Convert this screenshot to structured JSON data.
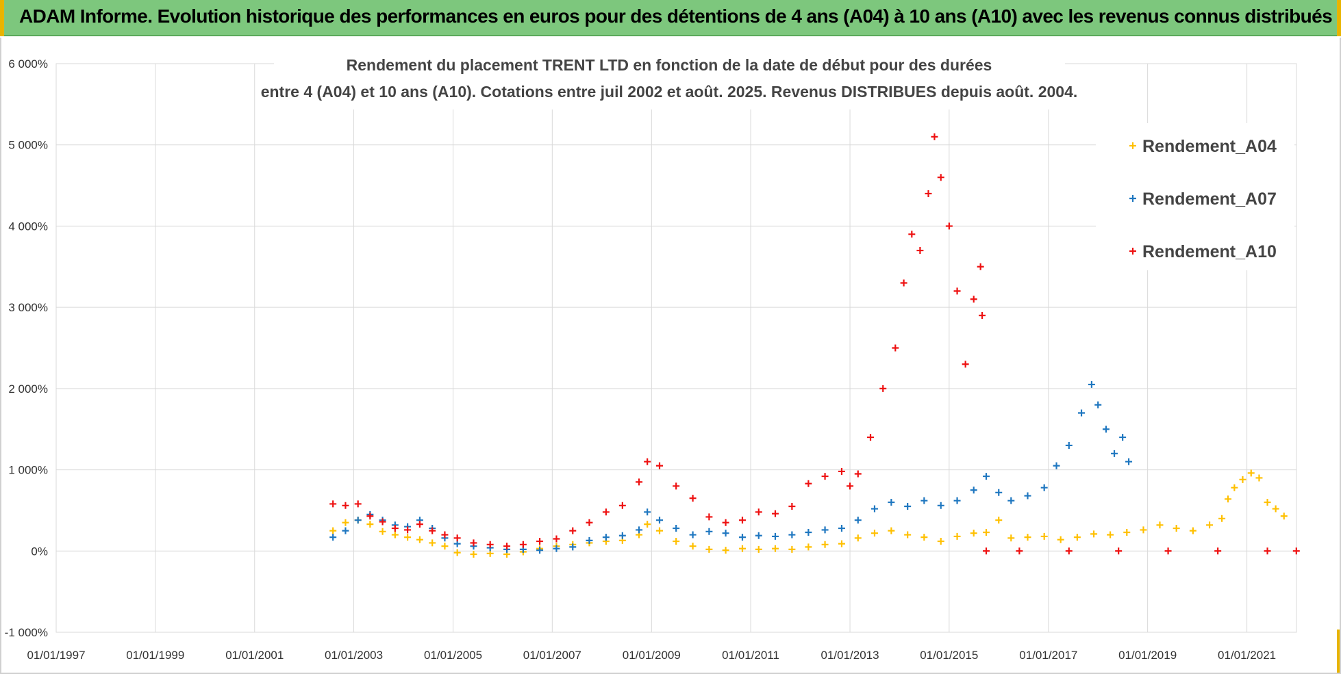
{
  "banner": {
    "text": "ADAM Informe. Evolution historique des performances en euros pour des détentions de 4 ans (A04) à 10 ans (A10) avec les revenus connus distribués"
  },
  "colors": {
    "banner_bg": "#7dc77d",
    "A04": "#ffc000",
    "A07": "#1f77c0",
    "A10": "#ee1111",
    "grid": "#d9d9d9"
  },
  "chart_data": {
    "type": "scatter",
    "title_lines": [
      "Rendement du placement TRENT LTD en fonction de la date de début pour des durées",
      "entre 4 (A04) et 10 ans (A10). Cotations entre juil 2002 et août. 2025. Revenus DISTRIBUES depuis août. 2004."
    ],
    "marker": "+",
    "x_axis": {
      "type": "date",
      "min": "1997-01-01",
      "max": "2022-01-01",
      "tick_labels": [
        "01/01/1997",
        "01/01/1999",
        "01/01/2001",
        "01/01/2003",
        "01/01/2005",
        "01/01/2007",
        "01/01/2009",
        "01/01/2011",
        "01/01/2013",
        "01/01/2015",
        "01/01/2017",
        "01/01/2019",
        "01/01/2021"
      ]
    },
    "y_axis": {
      "min": -1000,
      "max": 6000,
      "step": 1000,
      "tick_labels": [
        "-1 000%",
        "0%",
        "1 000%",
        "2 000%",
        "3 000%",
        "4 000%",
        "5 000%",
        "6 000%"
      ]
    },
    "grid": true,
    "legend_position": "right",
    "series": [
      {
        "name": "Rendement_A04",
        "points": [
          [
            "2002-08-01",
            250
          ],
          [
            "2002-11-01",
            350
          ],
          [
            "2003-02-01",
            380
          ],
          [
            "2003-05-01",
            330
          ],
          [
            "2003-08-01",
            240
          ],
          [
            "2003-11-01",
            200
          ],
          [
            "2004-02-01",
            170
          ],
          [
            "2004-05-01",
            140
          ],
          [
            "2004-08-01",
            100
          ],
          [
            "2004-11-01",
            60
          ],
          [
            "2005-02-01",
            -20
          ],
          [
            "2005-06-01",
            -40
          ],
          [
            "2005-10-01",
            -30
          ],
          [
            "2006-02-01",
            -40
          ],
          [
            "2006-06-01",
            -10
          ],
          [
            "2006-10-01",
            30
          ],
          [
            "2007-02-01",
            60
          ],
          [
            "2007-06-01",
            80
          ],
          [
            "2007-10-01",
            100
          ],
          [
            "2008-02-01",
            120
          ],
          [
            "2008-06-01",
            130
          ],
          [
            "2008-10-01",
            200
          ],
          [
            "2008-12-01",
            330
          ],
          [
            "2009-03-01",
            250
          ],
          [
            "2009-07-01",
            120
          ],
          [
            "2009-11-01",
            60
          ],
          [
            "2010-03-01",
            20
          ],
          [
            "2010-07-01",
            10
          ],
          [
            "2010-11-01",
            30
          ],
          [
            "2011-03-01",
            20
          ],
          [
            "2011-07-01",
            30
          ],
          [
            "2011-11-01",
            20
          ],
          [
            "2012-03-01",
            50
          ],
          [
            "2012-07-01",
            80
          ],
          [
            "2012-11-01",
            90
          ],
          [
            "2013-03-01",
            160
          ],
          [
            "2013-07-01",
            220
          ],
          [
            "2013-11-01",
            250
          ],
          [
            "2014-03-01",
            200
          ],
          [
            "2014-07-01",
            170
          ],
          [
            "2014-11-01",
            120
          ],
          [
            "2015-03-01",
            180
          ],
          [
            "2015-07-01",
            220
          ],
          [
            "2015-10-01",
            230
          ],
          [
            "2016-01-01",
            380
          ],
          [
            "2016-04-01",
            160
          ],
          [
            "2016-08-01",
            170
          ],
          [
            "2016-12-01",
            180
          ],
          [
            "2017-04-01",
            140
          ],
          [
            "2017-08-01",
            170
          ],
          [
            "2017-12-01",
            210
          ],
          [
            "2018-04-01",
            200
          ],
          [
            "2018-08-01",
            230
          ],
          [
            "2018-12-01",
            260
          ],
          [
            "2019-04-01",
            320
          ],
          [
            "2019-08-01",
            280
          ],
          [
            "2019-12-01",
            250
          ],
          [
            "2020-04-01",
            320
          ],
          [
            "2020-07-01",
            400
          ],
          [
            "2020-08-15",
            640
          ],
          [
            "2020-10-01",
            780
          ],
          [
            "2020-12-01",
            880
          ],
          [
            "2021-02-01",
            960
          ],
          [
            "2021-04-01",
            900
          ],
          [
            "2021-06-01",
            600
          ],
          [
            "2021-08-01",
            520
          ],
          [
            "2021-10-01",
            430
          ]
        ]
      },
      {
        "name": "Rendement_A07",
        "points": [
          [
            "2002-08-01",
            170
          ],
          [
            "2002-11-01",
            250
          ],
          [
            "2003-02-01",
            380
          ],
          [
            "2003-05-01",
            450
          ],
          [
            "2003-08-01",
            380
          ],
          [
            "2003-11-01",
            320
          ],
          [
            "2004-02-01",
            300
          ],
          [
            "2004-05-01",
            380
          ],
          [
            "2004-08-01",
            280
          ],
          [
            "2004-11-01",
            160
          ],
          [
            "2005-02-01",
            90
          ],
          [
            "2005-06-01",
            60
          ],
          [
            "2005-10-01",
            40
          ],
          [
            "2006-02-01",
            20
          ],
          [
            "2006-06-01",
            20
          ],
          [
            "2006-10-01",
            10
          ],
          [
            "2007-02-01",
            30
          ],
          [
            "2007-06-01",
            50
          ],
          [
            "2007-10-01",
            130
          ],
          [
            "2008-02-01",
            170
          ],
          [
            "2008-06-01",
            190
          ],
          [
            "2008-10-01",
            260
          ],
          [
            "2008-12-01",
            480
          ],
          [
            "2009-03-01",
            380
          ],
          [
            "2009-07-01",
            280
          ],
          [
            "2009-11-01",
            200
          ],
          [
            "2010-03-01",
            240
          ],
          [
            "2010-07-01",
            220
          ],
          [
            "2010-11-01",
            170
          ],
          [
            "2011-03-01",
            190
          ],
          [
            "2011-07-01",
            180
          ],
          [
            "2011-11-01",
            200
          ],
          [
            "2012-03-01",
            230
          ],
          [
            "2012-07-01",
            260
          ],
          [
            "2012-11-01",
            280
          ],
          [
            "2013-03-01",
            380
          ],
          [
            "2013-07-01",
            520
          ],
          [
            "2013-11-01",
            600
          ],
          [
            "2014-03-01",
            550
          ],
          [
            "2014-07-01",
            620
          ],
          [
            "2014-11-01",
            560
          ],
          [
            "2015-03-01",
            620
          ],
          [
            "2015-07-01",
            750
          ],
          [
            "2015-10-01",
            920
          ],
          [
            "2016-01-01",
            720
          ],
          [
            "2016-04-01",
            620
          ],
          [
            "2016-08-01",
            680
          ],
          [
            "2016-12-01",
            780
          ],
          [
            "2017-03-01",
            1050
          ],
          [
            "2017-06-01",
            1300
          ],
          [
            "2017-09-01",
            1700
          ],
          [
            "2017-11-15",
            2050
          ],
          [
            "2018-01-01",
            1800
          ],
          [
            "2018-03-01",
            1500
          ],
          [
            "2018-05-01",
            1200
          ],
          [
            "2018-07-01",
            1400
          ],
          [
            "2018-08-15",
            1100
          ]
        ]
      },
      {
        "name": "Rendement_A10",
        "points": [
          [
            "2002-08-01",
            580
          ],
          [
            "2002-11-01",
            560
          ],
          [
            "2003-02-01",
            580
          ],
          [
            "2003-05-01",
            430
          ],
          [
            "2003-08-01",
            360
          ],
          [
            "2003-11-01",
            280
          ],
          [
            "2004-02-01",
            260
          ],
          [
            "2004-05-01",
            330
          ],
          [
            "2004-08-01",
            250
          ],
          [
            "2004-11-01",
            200
          ],
          [
            "2005-02-01",
            160
          ],
          [
            "2005-06-01",
            100
          ],
          [
            "2005-10-01",
            80
          ],
          [
            "2006-02-01",
            60
          ],
          [
            "2006-06-01",
            80
          ],
          [
            "2006-10-01",
            120
          ],
          [
            "2007-02-01",
            150
          ],
          [
            "2007-06-01",
            250
          ],
          [
            "2007-10-01",
            350
          ],
          [
            "2008-02-01",
            480
          ],
          [
            "2008-06-01",
            560
          ],
          [
            "2008-10-01",
            850
          ],
          [
            "2008-12-01",
            1100
          ],
          [
            "2009-03-01",
            1050
          ],
          [
            "2009-07-01",
            800
          ],
          [
            "2009-11-01",
            650
          ],
          [
            "2010-03-01",
            420
          ],
          [
            "2010-07-01",
            350
          ],
          [
            "2010-11-01",
            380
          ],
          [
            "2011-03-01",
            480
          ],
          [
            "2011-07-01",
            460
          ],
          [
            "2011-11-01",
            550
          ],
          [
            "2012-03-01",
            830
          ],
          [
            "2012-07-01",
            920
          ],
          [
            "2012-11-01",
            980
          ],
          [
            "2013-01-01",
            800
          ],
          [
            "2013-03-01",
            950
          ],
          [
            "2013-06-01",
            1400
          ],
          [
            "2013-09-01",
            2000
          ],
          [
            "2013-12-01",
            2500
          ],
          [
            "2014-02-01",
            3300
          ],
          [
            "2014-04-01",
            3900
          ],
          [
            "2014-06-01",
            3700
          ],
          [
            "2014-08-01",
            4400
          ],
          [
            "2014-09-15",
            5100
          ],
          [
            "2014-11-01",
            4600
          ],
          [
            "2015-01-01",
            4000
          ],
          [
            "2015-03-01",
            3200
          ],
          [
            "2015-05-01",
            2300
          ],
          [
            "2015-07-01",
            3100
          ],
          [
            "2015-08-20",
            3500
          ],
          [
            "2015-09-01",
            2900
          ],
          [
            "2015-10-01",
            0
          ],
          [
            "2016-06-01",
            0
          ],
          [
            "2017-06-01",
            0
          ],
          [
            "2018-06-01",
            0
          ],
          [
            "2019-06-01",
            0
          ],
          [
            "2020-06-01",
            0
          ],
          [
            "2021-06-01",
            0
          ],
          [
            "2021-12-31",
            0
          ]
        ]
      }
    ]
  }
}
